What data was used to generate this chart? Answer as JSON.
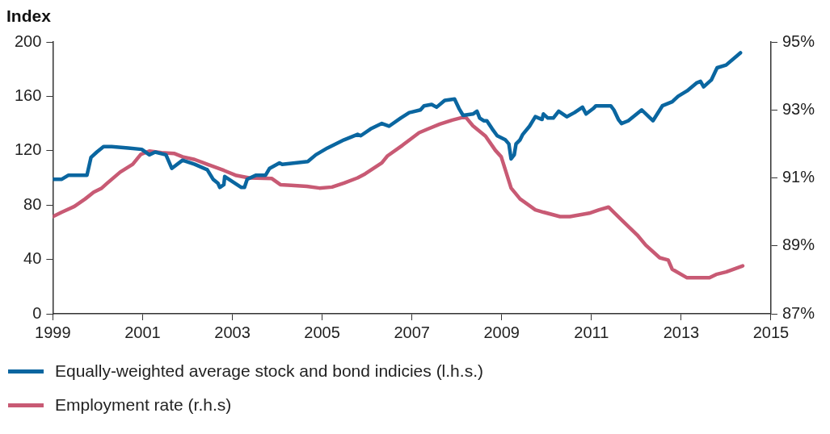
{
  "chart_data": {
    "type": "line",
    "ylabel": "Index",
    "xlim": [
      1999,
      2015
    ],
    "xticks": [
      1999,
      2001,
      2003,
      2005,
      2007,
      2009,
      2011,
      2013,
      2015
    ],
    "ylim": [
      0,
      200
    ],
    "yticks": [
      0,
      40,
      80,
      120,
      160,
      200
    ],
    "y2lim": [
      87,
      95
    ],
    "y2ticks": [
      {
        "value": 87,
        "label": "87%"
      },
      {
        "value": 89,
        "label": "89%"
      },
      {
        "value": 91,
        "label": "91%"
      },
      {
        "value": 93,
        "label": "93%"
      },
      {
        "value": 95,
        "label": "95%"
      }
    ],
    "grid": false,
    "legend": "bottom",
    "marker": "none",
    "line_style": "solid",
    "series": [
      {
        "name": "Equally-weighted average stock and bond indicies (l.h.s.)",
        "color": "#0a66a0",
        "x": [
          1999.0,
          1999.2,
          1999.35,
          1999.57,
          1999.76,
          1999.85,
          1999.98,
          2000.13,
          2000.31,
          2000.68,
          2000.98,
          2001.15,
          2001.28,
          2001.52,
          2001.65,
          2001.89,
          2002.16,
          2002.44,
          2002.57,
          2002.68,
          2002.72,
          2002.81,
          2002.83,
          2003.2,
          2003.27,
          2003.33,
          2003.53,
          2003.74,
          2003.83,
          2004.05,
          2004.11,
          2004.68,
          2004.86,
          2005.12,
          2005.49,
          2005.79,
          2005.86,
          2006.08,
          2006.33,
          2006.49,
          2006.75,
          2006.94,
          2007.19,
          2007.27,
          2007.44,
          2007.55,
          2007.73,
          2007.95,
          2008.05,
          2008.14,
          2008.36,
          2008.45,
          2008.51,
          2008.6,
          2008.67,
          2008.79,
          2008.9,
          2009.08,
          2009.16,
          2009.21,
          2009.28,
          2009.32,
          2009.41,
          2009.47,
          2009.62,
          2009.75,
          2009.9,
          2009.93,
          2010.03,
          2010.15,
          2010.27,
          2010.45,
          2010.62,
          2010.8,
          2010.88,
          2011.04,
          2011.1,
          2011.43,
          2011.5,
          2011.6,
          2011.67,
          2011.82,
          2012.12,
          2012.37,
          2012.58,
          2012.8,
          2012.93,
          2013.13,
          2013.35,
          2013.43,
          2013.5,
          2013.67,
          2013.8,
          2014.0,
          2014.32
        ],
        "values": [
          99,
          99,
          102,
          102,
          102,
          115,
          119,
          123,
          123,
          122,
          121,
          117,
          119,
          117,
          107,
          113,
          110,
          106,
          99,
          96,
          93,
          95,
          101,
          93,
          93,
          99,
          102,
          102,
          107,
          111,
          110,
          112,
          117,
          122,
          128,
          132,
          131,
          136,
          140,
          138,
          144,
          148,
          150,
          153,
          154,
          152,
          157,
          158,
          151,
          146,
          147,
          149,
          144,
          142,
          142,
          136,
          131,
          128,
          125,
          114,
          117,
          125,
          128,
          132,
          138,
          145,
          143,
          147,
          144,
          144,
          149,
          145,
          148,
          152,
          147,
          151,
          153,
          153,
          150,
          143,
          140,
          142,
          150,
          142,
          153,
          156,
          160,
          164,
          170,
          171,
          167,
          172,
          181,
          183,
          192
        ],
        "axis": "y"
      },
      {
        "name": "Employment rate (r.h.s)",
        "color": "#c85a74",
        "x": [
          1999.0,
          1999.2,
          1999.48,
          1999.72,
          1999.91,
          2000.09,
          2000.2,
          2000.5,
          2000.78,
          2000.96,
          2001.15,
          2001.42,
          2001.7,
          2001.89,
          2002.16,
          2002.44,
          2002.81,
          2003.09,
          2003.37,
          2003.88,
          2004.07,
          2004.31,
          2004.66,
          2004.94,
          2005.22,
          2005.49,
          2005.79,
          2005.96,
          2006.33,
          2006.45,
          2006.79,
          2007.16,
          2007.34,
          2007.62,
          2007.9,
          2008.19,
          2008.36,
          2008.64,
          2008.86,
          2008.99,
          2009.21,
          2009.41,
          2009.75,
          2009.93,
          2010.3,
          2010.52,
          2010.95,
          2011.17,
          2011.38,
          2011.69,
          2012.02,
          2012.21,
          2012.52,
          2012.71,
          2012.8,
          2013.13,
          2013.63,
          2013.78,
          2014.0,
          2014.37
        ],
        "values": [
          89.86,
          89.99,
          90.16,
          90.38,
          90.58,
          90.7,
          90.83,
          91.17,
          91.4,
          91.69,
          91.79,
          91.74,
          91.72,
          91.62,
          91.54,
          91.4,
          91.22,
          91.07,
          91.0,
          90.98,
          90.8,
          90.78,
          90.75,
          90.7,
          90.73,
          90.85,
          91.0,
          91.12,
          91.44,
          91.64,
          91.96,
          92.33,
          92.43,
          92.58,
          92.7,
          92.8,
          92.53,
          92.23,
          91.81,
          91.62,
          90.7,
          90.38,
          90.06,
          89.99,
          89.86,
          89.86,
          89.96,
          90.06,
          90.14,
          89.74,
          89.32,
          89.02,
          88.65,
          88.58,
          88.31,
          88.06,
          88.06,
          88.16,
          88.23,
          88.41
        ],
        "axis": "y2"
      }
    ]
  }
}
